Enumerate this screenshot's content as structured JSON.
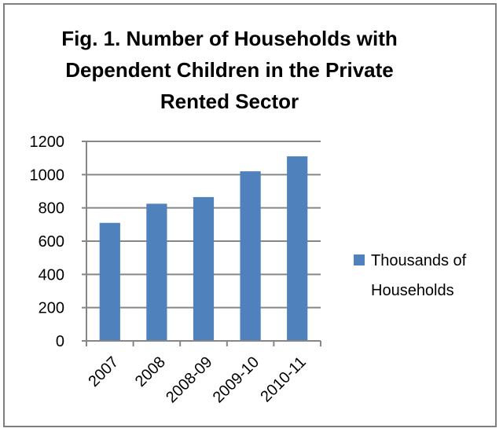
{
  "chart_data": {
    "type": "bar",
    "title_lines": [
      "Fig. 1. Number of Households with",
      "Dependent Children in the Private",
      "Rented Sector"
    ],
    "categories": [
      "2007",
      "2008",
      "2008-09",
      "2009-10",
      "2010-11"
    ],
    "series": [
      {
        "name": "Thousands of Households",
        "legend_lines": [
          "Thousands of",
          "Households"
        ],
        "values": [
          710,
          825,
          865,
          1020,
          1110
        ],
        "color": "#4f81bd"
      }
    ],
    "xlabel": "",
    "ylabel": "",
    "ylim": [
      0,
      1200
    ],
    "yticks": [
      0,
      200,
      400,
      600,
      800,
      1000,
      1200
    ],
    "grid": true,
    "legend_position": "right"
  }
}
